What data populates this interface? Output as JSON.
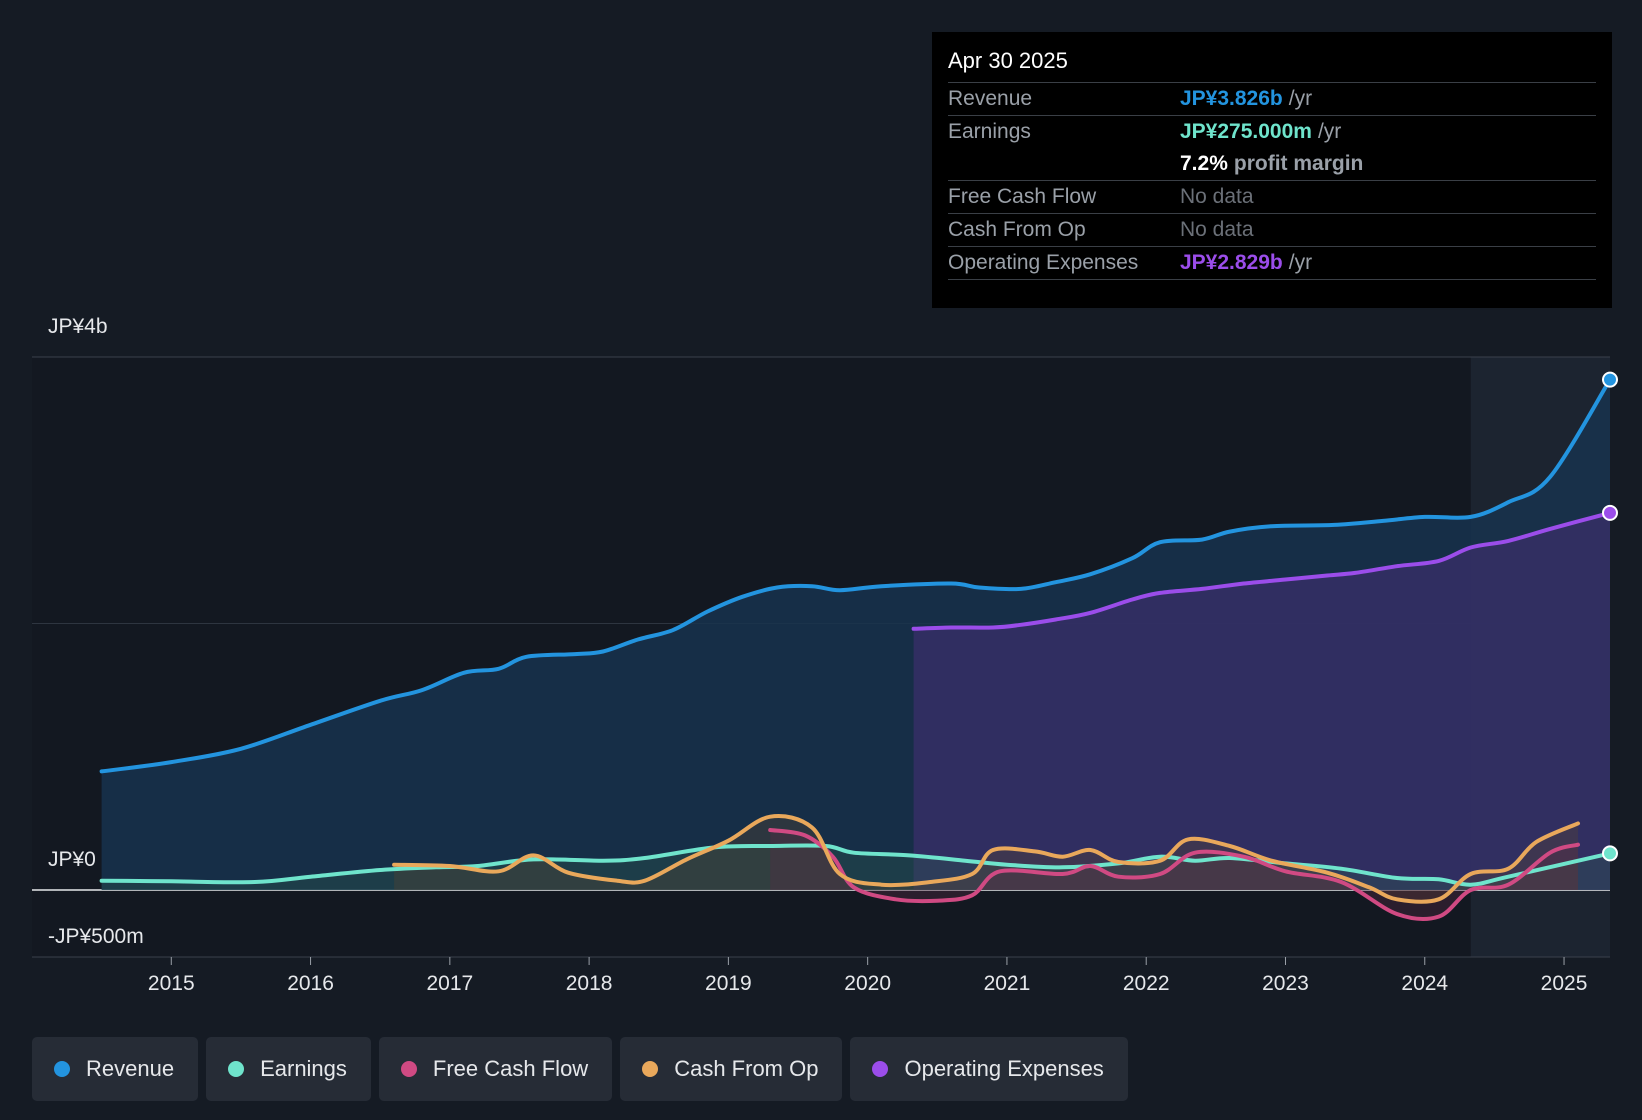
{
  "tooltip": {
    "date": "Apr 30 2025",
    "rows": {
      "revenue": {
        "label": "Revenue",
        "value": "JP¥3.826b",
        "unit": "/yr"
      },
      "earnings": {
        "label": "Earnings",
        "value": "JP¥275.000m",
        "unit": "/yr"
      },
      "margin": {
        "value": "7.2%",
        "unit": "profit margin"
      },
      "fcf": {
        "label": "Free Cash Flow",
        "value": "No data"
      },
      "cfo": {
        "label": "Cash From Op",
        "value": "No data"
      },
      "opex": {
        "label": "Operating Expenses",
        "value": "JP¥2.829b",
        "unit": "/yr"
      }
    }
  },
  "legend": {
    "revenue": "Revenue",
    "earnings": "Earnings",
    "fcf": "Free Cash Flow",
    "cfo": "Cash From Op",
    "opex": "Operating Expenses"
  },
  "colors": {
    "revenue": "#2394df",
    "earnings": "#6fe4cc",
    "fcf": "#d04a83",
    "cfo": "#e9a85b",
    "opex": "#9b4dea"
  },
  "chart_data": {
    "type": "line",
    "title": "",
    "y_unit": "JP¥ (billions)",
    "ylim": [
      -0.5,
      4.0
    ],
    "xlim": [
      2014.0,
      2025.33
    ],
    "y_tick_labels": [
      "JP¥4b",
      "JP¥0",
      "-JP¥500m"
    ],
    "y_tick_values": [
      4.0,
      0.0,
      -0.5
    ],
    "x_ticks": [
      "2015",
      "2016",
      "2017",
      "2018",
      "2019",
      "2020",
      "2021",
      "2022",
      "2023",
      "2024",
      "2025"
    ],
    "forecast_start": 2024.33,
    "series": [
      {
        "name": "Revenue",
        "key": "revenue",
        "points": [
          [
            2014.5,
            0.89
          ],
          [
            2015.0,
            0.96
          ],
          [
            2015.5,
            1.06
          ],
          [
            2016.0,
            1.24
          ],
          [
            2016.5,
            1.42
          ],
          [
            2016.8,
            1.5
          ],
          [
            2017.1,
            1.63
          ],
          [
            2017.35,
            1.66
          ],
          [
            2017.55,
            1.75
          ],
          [
            2017.9,
            1.77
          ],
          [
            2018.1,
            1.79
          ],
          [
            2018.35,
            1.88
          ],
          [
            2018.6,
            1.95
          ],
          [
            2018.85,
            2.09
          ],
          [
            2019.1,
            2.2
          ],
          [
            2019.35,
            2.27
          ],
          [
            2019.6,
            2.28
          ],
          [
            2019.8,
            2.25
          ],
          [
            2020.1,
            2.28
          ],
          [
            2020.6,
            2.3
          ],
          [
            2020.8,
            2.27
          ],
          [
            2021.1,
            2.26
          ],
          [
            2021.35,
            2.31
          ],
          [
            2021.6,
            2.37
          ],
          [
            2021.9,
            2.49
          ],
          [
            2022.1,
            2.61
          ],
          [
            2022.4,
            2.63
          ],
          [
            2022.6,
            2.69
          ],
          [
            2022.9,
            2.73
          ],
          [
            2023.35,
            2.74
          ],
          [
            2023.7,
            2.77
          ],
          [
            2024.0,
            2.8
          ],
          [
            2024.33,
            2.8
          ],
          [
            2024.6,
            2.91
          ],
          [
            2024.9,
            3.1
          ],
          [
            2025.33,
            3.83
          ]
        ]
      },
      {
        "name": "Earnings",
        "key": "earnings",
        "points": [
          [
            2014.5,
            0.07
          ],
          [
            2015.0,
            0.065
          ],
          [
            2015.6,
            0.06
          ],
          [
            2016.0,
            0.1
          ],
          [
            2016.5,
            0.15
          ],
          [
            2016.9,
            0.17
          ],
          [
            2017.2,
            0.18
          ],
          [
            2017.6,
            0.23
          ],
          [
            2018.1,
            0.22
          ],
          [
            2018.4,
            0.24
          ],
          [
            2018.9,
            0.32
          ],
          [
            2019.3,
            0.33
          ],
          [
            2019.7,
            0.33
          ],
          [
            2019.9,
            0.28
          ],
          [
            2020.3,
            0.26
          ],
          [
            2020.7,
            0.22
          ],
          [
            2021.0,
            0.19
          ],
          [
            2021.4,
            0.17
          ],
          [
            2021.8,
            0.2
          ],
          [
            2022.1,
            0.25
          ],
          [
            2022.35,
            0.22
          ],
          [
            2022.6,
            0.24
          ],
          [
            2023.0,
            0.2
          ],
          [
            2023.4,
            0.16
          ],
          [
            2023.8,
            0.09
          ],
          [
            2024.1,
            0.08
          ],
          [
            2024.33,
            0.04
          ],
          [
            2024.6,
            0.1
          ],
          [
            2025.33,
            0.275
          ]
        ]
      },
      {
        "name": "Free Cash Flow",
        "key": "fcf",
        "points": [
          [
            2019.3,
            0.45
          ],
          [
            2019.55,
            0.41
          ],
          [
            2019.75,
            0.25
          ],
          [
            2019.9,
            0.02
          ],
          [
            2020.2,
            -0.07
          ],
          [
            2020.5,
            -0.08
          ],
          [
            2020.75,
            -0.04
          ],
          [
            2020.95,
            0.14
          ],
          [
            2021.4,
            0.12
          ],
          [
            2021.6,
            0.18
          ],
          [
            2021.8,
            0.1
          ],
          [
            2022.1,
            0.12
          ],
          [
            2022.35,
            0.28
          ],
          [
            2022.7,
            0.25
          ],
          [
            2023.0,
            0.14
          ],
          [
            2023.4,
            0.06
          ],
          [
            2023.8,
            -0.18
          ],
          [
            2024.1,
            -0.2
          ],
          [
            2024.33,
            0.0
          ],
          [
            2024.6,
            0.04
          ],
          [
            2024.9,
            0.28
          ],
          [
            2025.1,
            0.34
          ]
        ]
      },
      {
        "name": "Cash From Op",
        "key": "cfo",
        "points": [
          [
            2016.6,
            0.19
          ],
          [
            2017.0,
            0.18
          ],
          [
            2017.35,
            0.14
          ],
          [
            2017.6,
            0.26
          ],
          [
            2017.85,
            0.13
          ],
          [
            2018.2,
            0.07
          ],
          [
            2018.4,
            0.07
          ],
          [
            2018.7,
            0.23
          ],
          [
            2019.0,
            0.37
          ],
          [
            2019.3,
            0.55
          ],
          [
            2019.6,
            0.47
          ],
          [
            2019.8,
            0.12
          ],
          [
            2020.1,
            0.04
          ],
          [
            2020.45,
            0.06
          ],
          [
            2020.75,
            0.12
          ],
          [
            2020.9,
            0.3
          ],
          [
            2021.2,
            0.29
          ],
          [
            2021.4,
            0.25
          ],
          [
            2021.6,
            0.3
          ],
          [
            2021.8,
            0.21
          ],
          [
            2022.1,
            0.22
          ],
          [
            2022.3,
            0.38
          ],
          [
            2022.6,
            0.33
          ],
          [
            2022.9,
            0.22
          ],
          [
            2023.3,
            0.13
          ],
          [
            2023.6,
            0.02
          ],
          [
            2023.8,
            -0.07
          ],
          [
            2024.1,
            -0.07
          ],
          [
            2024.33,
            0.12
          ],
          [
            2024.6,
            0.16
          ],
          [
            2024.8,
            0.36
          ],
          [
            2025.1,
            0.5
          ]
        ]
      },
      {
        "name": "Operating Expenses",
        "key": "opex",
        "points": [
          [
            2020.33,
            1.96
          ],
          [
            2020.6,
            1.97
          ],
          [
            2020.9,
            1.97
          ],
          [
            2021.1,
            1.99
          ],
          [
            2021.35,
            2.03
          ],
          [
            2021.6,
            2.08
          ],
          [
            2021.9,
            2.18
          ],
          [
            2022.1,
            2.23
          ],
          [
            2022.4,
            2.26
          ],
          [
            2022.7,
            2.3
          ],
          [
            2023.0,
            2.33
          ],
          [
            2023.3,
            2.36
          ],
          [
            2023.5,
            2.38
          ],
          [
            2023.8,
            2.43
          ],
          [
            2024.1,
            2.47
          ],
          [
            2024.33,
            2.57
          ],
          [
            2024.6,
            2.62
          ],
          [
            2024.9,
            2.71
          ],
          [
            2025.33,
            2.83
          ]
        ]
      }
    ]
  }
}
